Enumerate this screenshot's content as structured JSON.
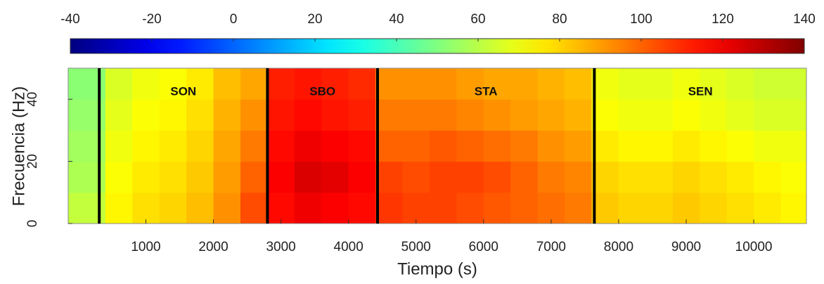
{
  "chart_data": {
    "type": "heatmap",
    "xlabel": "Tiempo (s)",
    "ylabel": "Frecuencia (Hz)",
    "xlim": [
      -150,
      10780
    ],
    "xticks": [
      1000,
      2000,
      3000,
      4000,
      5000,
      6000,
      7000,
      8000,
      9000,
      10000
    ],
    "ylim": [
      0,
      50
    ],
    "yticks": [
      0,
      20,
      40
    ],
    "clim": [
      -40,
      140
    ],
    "cticks": [
      -40,
      -20,
      0,
      20,
      40,
      60,
      80,
      100,
      120,
      140
    ],
    "colormap": "jet",
    "x": [
      200,
      600,
      1000,
      1400,
      1800,
      2200,
      2600,
      3000,
      3400,
      3800,
      4200,
      4600,
      5000,
      5400,
      5800,
      6200,
      6600,
      7000,
      7400,
      7800,
      8200,
      8600,
      9000,
      9400,
      9800,
      10200,
      10600
    ],
    "y": [
      5,
      15,
      25,
      35,
      45
    ],
    "z": [
      [
        62,
        74,
        78,
        80,
        84,
        92,
        104,
        116,
        120,
        118,
        116,
        108,
        106,
        106,
        104,
        102,
        100,
        98,
        96,
        82,
        80,
        80,
        82,
        80,
        78,
        76,
        74
      ],
      [
        58,
        72,
        76,
        78,
        82,
        90,
        100,
        118,
        124,
        122,
        118,
        106,
        104,
        106,
        106,
        104,
        100,
        96,
        94,
        80,
        78,
        78,
        80,
        78,
        76,
        74,
        72
      ],
      [
        56,
        70,
        74,
        76,
        80,
        88,
        96,
        116,
        120,
        118,
        116,
        100,
        100,
        102,
        100,
        98,
        96,
        92,
        90,
        76,
        74,
        74,
        76,
        74,
        72,
        70,
        70
      ],
      [
        54,
        68,
        72,
        74,
        78,
        86,
        92,
        114,
        116,
        114,
        112,
        96,
        96,
        96,
        94,
        92,
        90,
        88,
        86,
        72,
        70,
        70,
        72,
        70,
        68,
        66,
        66
      ],
      [
        52,
        66,
        70,
        72,
        76,
        84,
        88,
        112,
        114,
        112,
        110,
        92,
        92,
        92,
        90,
        88,
        88,
        86,
        84,
        70,
        68,
        68,
        70,
        68,
        66,
        64,
        64
      ]
    ],
    "boundaries": [
      310,
      2800,
      4430,
      7640
    ],
    "annotations": [
      "SON",
      "SBO",
      "STA",
      "SEN"
    ]
  }
}
